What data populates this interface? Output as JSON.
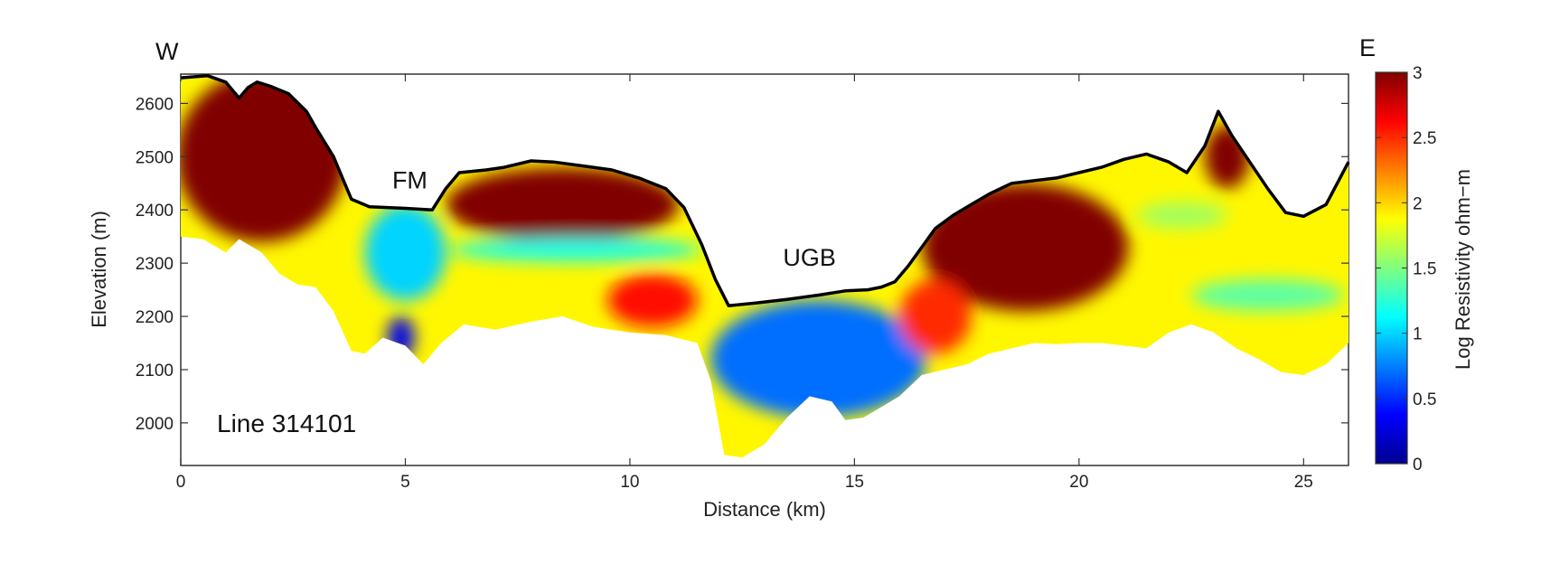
{
  "chart_data": {
    "type": "heatmap",
    "subtype": "resistivity cross-section",
    "xlabel": "Distance (km)",
    "ylabel": "Elevation (m)",
    "colorbar_label": "Log Resistivity ohm−m",
    "xlim": [
      0,
      26
    ],
    "ylim": [
      1920,
      2655
    ],
    "x_ticks": [
      0,
      5,
      10,
      15,
      20,
      25
    ],
    "y_ticks": [
      2000,
      2100,
      2200,
      2300,
      2400,
      2500,
      2600
    ],
    "colorbar_range": [
      0,
      3
    ],
    "colorbar_ticks": [
      0,
      0.5,
      1,
      1.5,
      2,
      2.5,
      3
    ],
    "colormap": "jet",
    "grid": false,
    "direction_labels": {
      "left": "W",
      "right": "E"
    },
    "line_label": "Line 314101",
    "annotations": [
      {
        "text": "FM",
        "x": 5.1,
        "y": 2440
      },
      {
        "text": "UGB",
        "x": 14.0,
        "y": 2295
      }
    ],
    "surface_profile": {
      "x": [
        0,
        0.6,
        1.0,
        1.3,
        1.5,
        1.7,
        2.0,
        2.4,
        2.8,
        3.0,
        3.4,
        3.8,
        4.2,
        5.0,
        5.6,
        5.9,
        6.2,
        6.8,
        7.2,
        7.8,
        8.3,
        9.0,
        9.6,
        10.2,
        10.8,
        11.2,
        11.6,
        11.9,
        12.2,
        12.8,
        13.5,
        14.2,
        14.8,
        15.3,
        15.6,
        15.9,
        16.2,
        16.5,
        16.8,
        17.2,
        17.6,
        18.0,
        18.5,
        19.0,
        19.5,
        20.0,
        20.5,
        21.0,
        21.5,
        22.0,
        22.4,
        22.8,
        23.1,
        23.4,
        23.8,
        24.2,
        24.6,
        25.0,
        25.5,
        26.0
      ],
      "y": [
        2648,
        2652,
        2640,
        2610,
        2630,
        2640,
        2632,
        2618,
        2585,
        2555,
        2500,
        2420,
        2406,
        2403,
        2400,
        2440,
        2470,
        2475,
        2480,
        2492,
        2490,
        2482,
        2475,
        2460,
        2440,
        2405,
        2335,
        2270,
        2220,
        2225,
        2232,
        2240,
        2248,
        2250,
        2255,
        2265,
        2295,
        2330,
        2365,
        2390,
        2410,
        2430,
        2450,
        2455,
        2460,
        2470,
        2480,
        2495,
        2505,
        2490,
        2470,
        2520,
        2585,
        2540,
        2490,
        2440,
        2395,
        2388,
        2410,
        2490
      ]
    },
    "bottom_profile": {
      "x": [
        0,
        0.5,
        1.0,
        1.3,
        1.5,
        1.8,
        2.2,
        2.6,
        3.0,
        3.4,
        3.8,
        4.1,
        4.5,
        5.0,
        5.4,
        5.8,
        6.3,
        7.0,
        7.8,
        8.5,
        9.2,
        10.0,
        10.8,
        11.5,
        11.8,
        12.1,
        12.5,
        13.0,
        13.5,
        14.0,
        14.5,
        14.8,
        15.2,
        15.6,
        16.0,
        16.5,
        17.0,
        17.5,
        18.0,
        18.5,
        19.0,
        19.5,
        20.0,
        20.5,
        21.0,
        21.5,
        22.0,
        22.5,
        23.0,
        23.5,
        24.0,
        24.5,
        25.0,
        25.5,
        26.0
      ],
      "y": [
        2350,
        2345,
        2320,
        2345,
        2335,
        2320,
        2280,
        2260,
        2255,
        2210,
        2135,
        2130,
        2160,
        2145,
        2110,
        2150,
        2185,
        2175,
        2190,
        2200,
        2180,
        2170,
        2165,
        2150,
        2080,
        1940,
        1935,
        1960,
        2010,
        2050,
        2040,
        2005,
        2010,
        2030,
        2050,
        2090,
        2100,
        2110,
        2130,
        2140,
        2150,
        2148,
        2150,
        2150,
        2145,
        2140,
        2170,
        2185,
        2170,
        2140,
        2120,
        2095,
        2090,
        2110,
        2150
      ]
    },
    "resistivity_features": [
      {
        "note": "log resistivity values (log10 ohm-m) at the center of each body",
        "x": 1.8,
        "y": 2500,
        "value": 3.0,
        "rx": 1.9,
        "ry": 160
      },
      {
        "x": 8.5,
        "y": 2410,
        "value": 3.0,
        "rx": 2.6,
        "ry": 70
      },
      {
        "x": 18.8,
        "y": 2330,
        "value": 3.0,
        "rx": 2.3,
        "ry": 120
      },
      {
        "x": 5.0,
        "y": 2320,
        "value": 1.0,
        "rx": 0.9,
        "ry": 90
      },
      {
        "x": 4.9,
        "y": 2160,
        "value": 0.3,
        "rx": 0.3,
        "ry": 40
      },
      {
        "x": 14.2,
        "y": 2120,
        "value": 0.7,
        "rx": 2.4,
        "ry": 110
      },
      {
        "x": 8.8,
        "y": 2325,
        "value": 1.2,
        "rx": 2.8,
        "ry": 22
      },
      {
        "x": 22.3,
        "y": 2390,
        "value": 1.6,
        "rx": 1.0,
        "ry": 25
      },
      {
        "x": 24.2,
        "y": 2240,
        "value": 1.4,
        "rx": 1.7,
        "ry": 30
      },
      {
        "x": 23.3,
        "y": 2500,
        "value": 3.0,
        "rx": 0.5,
        "ry": 60
      },
      {
        "x": 10.5,
        "y": 2230,
        "value": 2.6,
        "rx": 1.0,
        "ry": 50
      },
      {
        "x": 16.8,
        "y": 2200,
        "value": 2.5,
        "rx": 0.8,
        "ry": 70
      }
    ]
  }
}
